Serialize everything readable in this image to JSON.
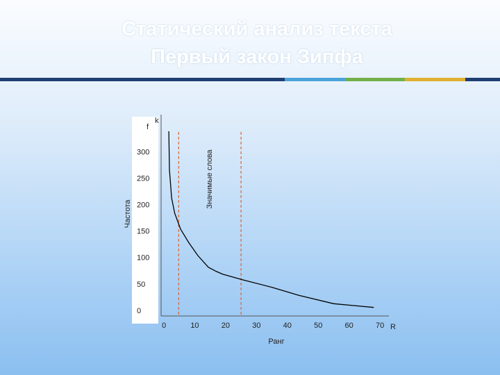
{
  "slide": {
    "title_lines": [
      "Статический анализ текста",
      "Первый закон Зипфа"
    ]
  },
  "chart_data": {
    "type": "line",
    "y_label": "Частота",
    "y_symbol": "f",
    "y_symbol_sub": "k",
    "x_label": "Ранг",
    "x_symbol": "R",
    "annotation": "Значимые слова",
    "x": [
      1.6,
      1.8,
      2.3,
      2.5,
      3.5,
      5.4,
      8,
      11,
      14.4,
      17,
      19,
      25.7,
      35,
      43.7,
      55,
      68
    ],
    "values": [
      340,
      267,
      230,
      214,
      185,
      155,
      130,
      105,
      83,
      75,
      70,
      59,
      45,
      30,
      14,
      7
    ],
    "color": "#000000",
    "vlines": [
      4.8,
      25
    ],
    "vline_color": "#e0602a",
    "xlim": [
      0,
      72
    ],
    "ylim": [
      0,
      365
    ],
    "xticks": [
      0,
      10,
      20,
      30,
      40,
      50,
      60,
      70
    ],
    "yticks": [
      0,
      50,
      100,
      150,
      200,
      250,
      300
    ]
  }
}
